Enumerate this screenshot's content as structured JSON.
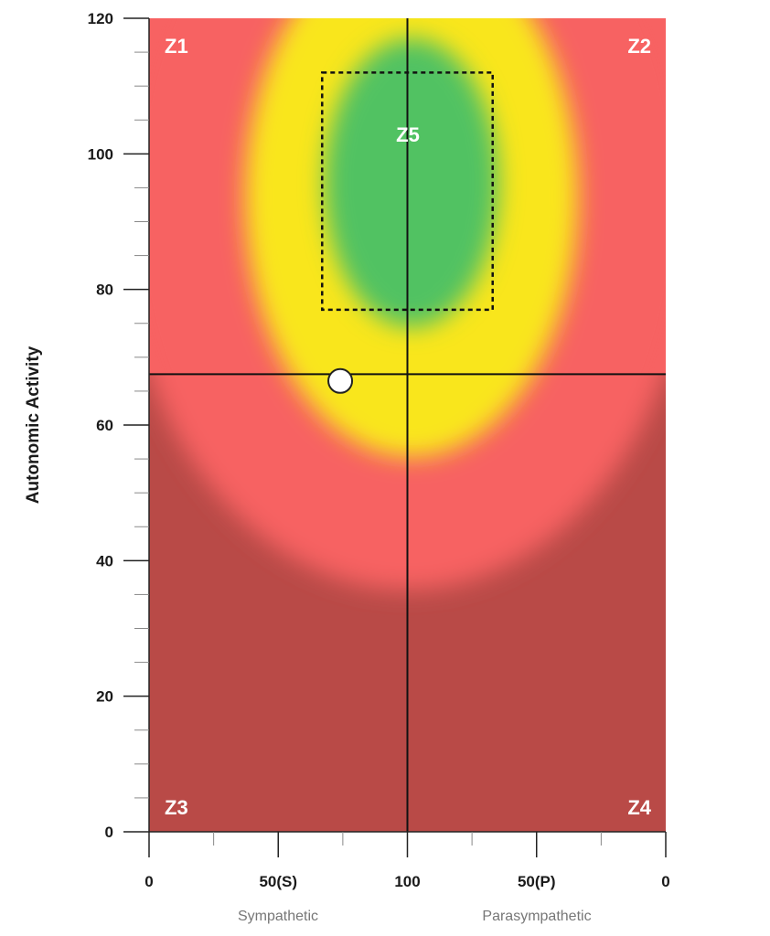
{
  "chart_data": {
    "type": "heatmap",
    "ylabel": "Autonomic Activity",
    "ylim": [
      0,
      120
    ],
    "y_ticks": [
      "0",
      "20",
      "40",
      "60",
      "80",
      "100",
      "120"
    ],
    "x_ticks": [
      "0",
      "50(S)",
      "100",
      "50(P)",
      "0"
    ],
    "x_captions": [
      "Sympathetic",
      "Parasympathetic"
    ],
    "zones": [
      {
        "label": "Z1",
        "region": "upper-left",
        "color": "#f76262"
      },
      {
        "label": "Z2",
        "region": "upper-right",
        "color": "#f76262"
      },
      {
        "label": "Z3",
        "region": "lower-left",
        "color": "#b94a47"
      },
      {
        "label": "Z4",
        "region": "lower-right",
        "color": "#b94a47"
      },
      {
        "label": "Z5",
        "region": "center",
        "color": "#51c262"
      }
    ],
    "colors": {
      "dark_red": "#b94a47",
      "red": "#f76262",
      "yellow": "#f9e61f",
      "green": "#51c262"
    },
    "target_box": {
      "x_start": 67,
      "x_end": 67,
      "x_start_side": "S",
      "x_end_side": "P",
      "y_min": 77,
      "y_max": 112
    },
    "crosshair": {
      "x": 100,
      "y": 67.5
    },
    "point": {
      "x": 74,
      "x_side": "S",
      "y": 66.5
    }
  }
}
